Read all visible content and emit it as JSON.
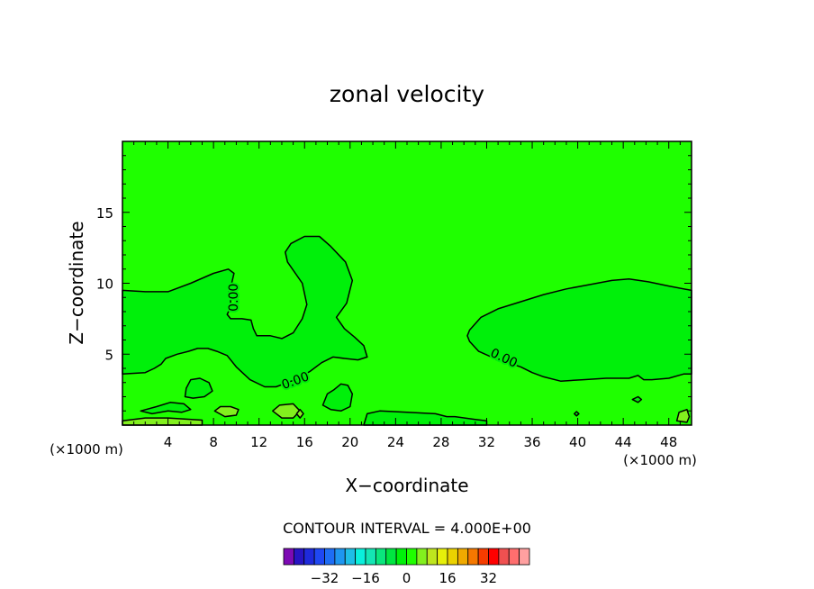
{
  "chart_data": {
    "type": "heatmap",
    "title": "zonal velocity",
    "xlabel": "X−coordinate",
    "ylabel": "Z−coordinate",
    "x_unit_left": "(×1000 m)",
    "x_unit_right": "(×1000 m)",
    "xlim": [
      0,
      50
    ],
    "ylim": [
      0,
      20
    ],
    "x_ticks": [
      4,
      8,
      12,
      16,
      20,
      24,
      28,
      32,
      36,
      40,
      44,
      48
    ],
    "x_tick_labels": [
      "4",
      "8",
      "12",
      "16",
      "20",
      "24",
      "28",
      "32",
      "36",
      "40",
      "44",
      "48"
    ],
    "y_ticks": [
      5,
      10,
      15
    ],
    "y_tick_labels": [
      "5",
      "10",
      "15"
    ],
    "background_value": 2,
    "contour_interval_text": "CONTOUR INTERVAL = 4.000E+00",
    "contour_labels": [
      {
        "text": "0.00",
        "x": 9.8,
        "z": 9.0,
        "angle": -90
      },
      {
        "text": "0.00",
        "x": 15.2,
        "z": 3.1,
        "angle": -20
      },
      {
        "text": "0.00",
        "x": 33.5,
        "z": 4.7,
        "angle": 25
      }
    ],
    "regions": [
      {
        "value": -2,
        "label": "0.00",
        "boundary": [
          [
            0,
            9.5
          ],
          [
            2,
            9.4
          ],
          [
            4,
            9.4
          ],
          [
            6,
            10.0
          ],
          [
            8,
            10.7
          ],
          [
            9.3,
            11.0
          ],
          [
            9.8,
            10.7
          ],
          [
            9.6,
            10.0
          ],
          [
            9.3,
            9.3
          ],
          [
            9.5,
            8.8
          ],
          [
            9.5,
            8.3
          ],
          [
            9.2,
            7.8
          ],
          [
            9.5,
            7.5
          ],
          [
            10.5,
            7.5
          ],
          [
            11.3,
            7.4
          ],
          [
            11.5,
            6.8
          ],
          [
            11.8,
            6.3
          ],
          [
            13,
            6.3
          ],
          [
            14,
            6.1
          ],
          [
            15,
            6.5
          ],
          [
            15.8,
            7.5
          ],
          [
            16.2,
            8.5
          ],
          [
            15.8,
            10
          ],
          [
            14.5,
            11.5
          ],
          [
            14.3,
            12.2
          ],
          [
            14.8,
            12.8
          ],
          [
            16,
            13.3
          ],
          [
            17.3,
            13.3
          ],
          [
            18.3,
            12.6
          ],
          [
            19.6,
            11.5
          ],
          [
            20.2,
            10.2
          ],
          [
            19.7,
            8.6
          ],
          [
            18.8,
            7.6
          ],
          [
            19.5,
            6.8
          ],
          [
            20.4,
            6.2
          ],
          [
            21.2,
            5.6
          ],
          [
            21.5,
            4.8
          ],
          [
            20.7,
            4.6
          ],
          [
            19.5,
            4.7
          ],
          [
            18.5,
            4.8
          ],
          [
            17.5,
            4.4
          ],
          [
            16.5,
            3.8
          ],
          [
            15.5,
            3.3
          ],
          [
            14.5,
            3.0
          ],
          [
            13.5,
            2.7
          ],
          [
            12.5,
            2.7
          ],
          [
            11.2,
            3.2
          ],
          [
            10,
            4.1
          ],
          [
            9.2,
            4.9
          ],
          [
            8.3,
            5.2
          ],
          [
            7.5,
            5.4
          ],
          [
            6.6,
            5.4
          ],
          [
            5.8,
            5.2
          ],
          [
            4.8,
            5.0
          ],
          [
            3.8,
            4.7
          ],
          [
            3.4,
            4.3
          ],
          [
            2.8,
            4.0
          ],
          [
            2,
            3.7
          ],
          [
            0,
            3.6
          ]
        ]
      },
      {
        "value": -2,
        "label": "0.00",
        "boundary": [
          [
            50,
            9.5
          ],
          [
            48,
            9.8
          ],
          [
            46.2,
            10.1
          ],
          [
            44.5,
            10.3
          ],
          [
            43,
            10.2
          ],
          [
            41,
            9.9
          ],
          [
            39,
            9.6
          ],
          [
            37,
            9.2
          ],
          [
            35,
            8.7
          ],
          [
            33,
            8.2
          ],
          [
            31.5,
            7.6
          ],
          [
            30.5,
            6.7
          ],
          [
            30.3,
            6.3
          ],
          [
            30.5,
            5.9
          ],
          [
            31.3,
            5.2
          ],
          [
            32.7,
            4.7
          ],
          [
            33.5,
            4.5
          ],
          [
            35,
            4.1
          ],
          [
            36,
            3.7
          ],
          [
            37,
            3.4
          ],
          [
            38.5,
            3.1
          ],
          [
            40.5,
            3.2
          ],
          [
            42.5,
            3.3
          ],
          [
            44.5,
            3.3
          ],
          [
            45.3,
            3.5
          ],
          [
            45.8,
            3.2
          ],
          [
            46.5,
            3.2
          ],
          [
            48,
            3.3
          ],
          [
            49.3,
            3.6
          ],
          [
            50,
            3.6
          ]
        ]
      },
      {
        "value": -2,
        "boundary": [
          [
            5.5,
            2.0
          ],
          [
            5.6,
            2.6
          ],
          [
            6.0,
            3.2
          ],
          [
            6.8,
            3.3
          ],
          [
            7.6,
            3.0
          ],
          [
            7.9,
            2.4
          ],
          [
            7.2,
            2.0
          ],
          [
            6.2,
            1.9
          ]
        ]
      },
      {
        "value": -2,
        "boundary": [
          [
            1.6,
            1.0
          ],
          [
            3.0,
            1.3
          ],
          [
            4.2,
            1.6
          ],
          [
            5.4,
            1.5
          ],
          [
            6.0,
            1.1
          ],
          [
            5.2,
            0.9
          ],
          [
            4.0,
            1.0
          ],
          [
            2.6,
            0.8
          ]
        ]
      },
      {
        "value": -2,
        "boundary": [
          [
            17.6,
            1.4
          ],
          [
            18.0,
            2.2
          ],
          [
            18.6,
            2.5
          ],
          [
            19.2,
            2.9
          ],
          [
            19.8,
            2.8
          ],
          [
            20.2,
            2.2
          ],
          [
            20.0,
            1.3
          ],
          [
            19.2,
            1.0
          ],
          [
            18.3,
            1.1
          ]
        ]
      },
      {
        "value": -2,
        "boundary": [
          [
            21.2,
            0
          ],
          [
            21.5,
            0.8
          ],
          [
            22.6,
            1.0
          ],
          [
            25,
            0.9
          ],
          [
            27.5,
            0.8
          ],
          [
            28.5,
            0.6
          ],
          [
            29.2,
            0.6
          ],
          [
            31,
            0.4
          ],
          [
            32,
            0.3
          ],
          [
            32,
            0
          ]
        ]
      },
      {
        "value": -2,
        "boundary": [
          [
            44.8,
            1.8
          ],
          [
            45.3,
            2.0
          ],
          [
            45.6,
            1.8
          ],
          [
            45.3,
            1.6
          ]
        ]
      },
      {
        "value": -2,
        "boundary": [
          [
            39.7,
            0.8
          ],
          [
            39.9,
            0.95
          ],
          [
            40.1,
            0.8
          ],
          [
            39.9,
            0.65
          ]
        ]
      },
      {
        "value": 6,
        "boundary": [
          [
            8.1,
            1.0
          ],
          [
            8.6,
            1.3
          ],
          [
            9.5,
            1.3
          ],
          [
            10.2,
            1.1
          ],
          [
            10.0,
            0.7
          ],
          [
            9.0,
            0.6
          ]
        ]
      },
      {
        "value": 6,
        "boundary": [
          [
            13.2,
            1.0
          ],
          [
            13.8,
            1.4
          ],
          [
            15,
            1.5
          ],
          [
            15.6,
            1.0
          ],
          [
            15.0,
            0.5
          ],
          [
            14.0,
            0.5
          ]
        ]
      },
      {
        "value": 6,
        "boundary": [
          [
            15.3,
            0.8
          ],
          [
            15.6,
            1.1
          ],
          [
            15.9,
            0.8
          ],
          [
            15.6,
            0.5
          ]
        ]
      },
      {
        "value": 6,
        "boundary": [
          [
            48.7,
            0.3
          ],
          [
            48.9,
            0.9
          ],
          [
            49.6,
            1.1
          ],
          [
            49.8,
            0.6
          ],
          [
            49.6,
            0.2
          ]
        ]
      },
      {
        "value": 6,
        "boundary": [
          [
            0,
            0.3
          ],
          [
            2,
            0.5
          ],
          [
            4,
            0.5
          ],
          [
            7,
            0.35
          ],
          [
            7,
            0
          ],
          [
            0,
            0
          ]
        ]
      }
    ],
    "colorbar": {
      "colors": [
        "#7d0ab4",
        "#2814c3",
        "#1e2adc",
        "#1f48f3",
        "#1e6df5",
        "#1e96f0",
        "#1ebee6",
        "#0af0dc",
        "#14e6b4",
        "#0ae67d",
        "#00e641",
        "#00f00a",
        "#1fff00",
        "#82f01e",
        "#bee61e",
        "#e6f00a",
        "#ebd200",
        "#f0aa00",
        "#f57800",
        "#f53c00",
        "#ff0000",
        "#f05050",
        "#ff6e6e",
        "#ffa0a0"
      ],
      "range": [
        -48,
        48
      ],
      "tick_values": [
        -32,
        -16,
        0,
        16,
        32
      ],
      "tick_labels": [
        "−32",
        "−16",
        "0",
        "16",
        "32"
      ]
    }
  }
}
